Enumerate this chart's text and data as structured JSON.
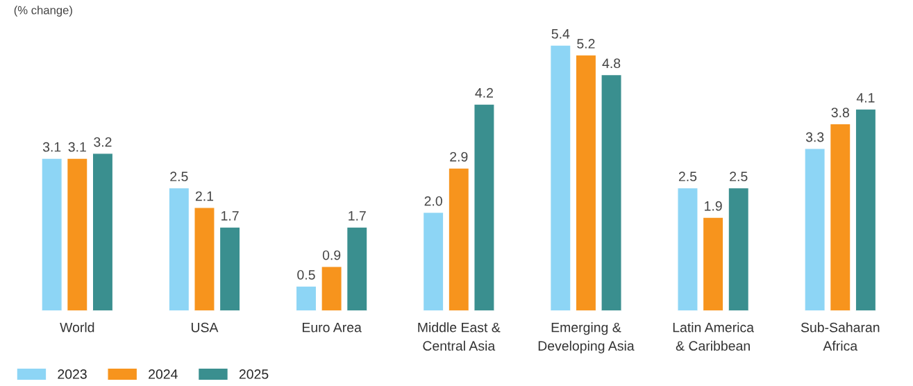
{
  "chart_data": {
    "type": "bar",
    "ylabel": "(% change)",
    "categories": [
      "World",
      "USA",
      "Euro Area",
      "Middle East &\nCentral Asia",
      "Emerging &\nDeveloping Asia",
      "Latin America\n& Caribbean",
      "Sub-Saharan\nAfrica"
    ],
    "series": [
      {
        "name": "2023",
        "color": "#8dd5f5",
        "values": [
          3.1,
          2.5,
          0.5,
          2.0,
          5.4,
          2.5,
          3.3
        ],
        "value_labels": [
          "3.1",
          "2.5",
          "0.5",
          "2.0",
          "5.4",
          "2.5",
          "3.3"
        ]
      },
      {
        "name": "2024",
        "color": "#f7941d",
        "values": [
          3.1,
          2.1,
          0.9,
          2.9,
          5.2,
          1.9,
          3.8
        ],
        "value_labels": [
          "3.1",
          "2.1",
          "0.9",
          "2.9",
          "5.2",
          "1.9",
          "3.8"
        ]
      },
      {
        "name": "2025",
        "color": "#3a8f8f",
        "values": [
          3.2,
          1.7,
          1.7,
          4.2,
          4.8,
          2.5,
          4.1
        ],
        "value_labels": [
          "3.2",
          "1.7",
          "1.7",
          "4.2",
          "4.8",
          "2.5",
          "4.1"
        ]
      }
    ],
    "grid": false,
    "legend": "bottom left"
  }
}
